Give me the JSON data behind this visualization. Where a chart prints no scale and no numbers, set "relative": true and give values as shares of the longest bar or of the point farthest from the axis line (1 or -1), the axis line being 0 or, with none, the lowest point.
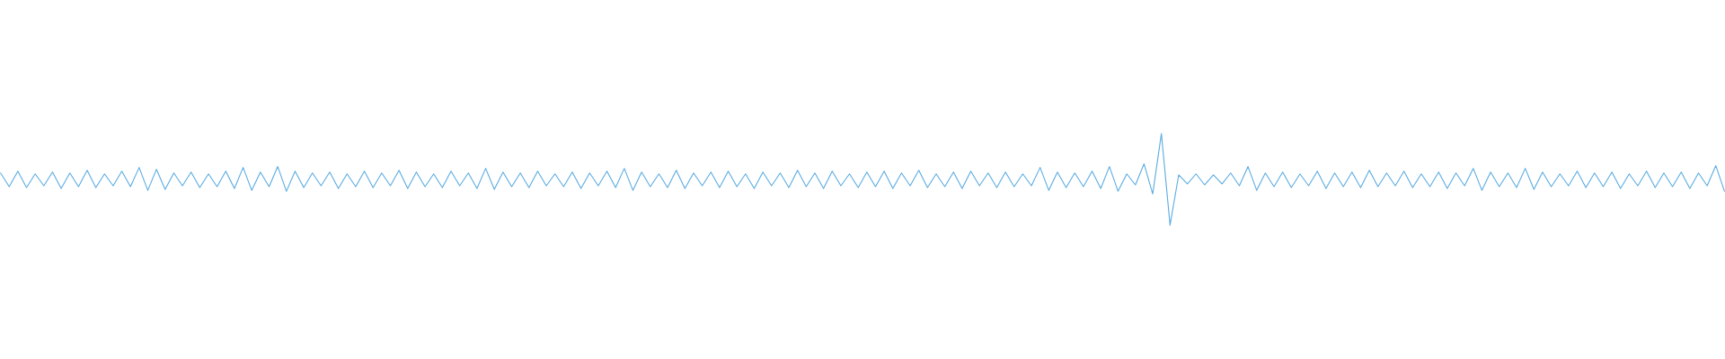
{
  "chart_data": {
    "type": "line",
    "relative": true,
    "categories": [
      null,
      null,
      null,
      null,
      null,
      null,
      null,
      null,
      null,
      null,
      null,
      null,
      null,
      null,
      null,
      null,
      null,
      null,
      null,
      null,
      null,
      null,
      null,
      null,
      null,
      null,
      null,
      null,
      null,
      null,
      null,
      null,
      null,
      null,
      null,
      null,
      null,
      null,
      null,
      null,
      null,
      null,
      null,
      null,
      null,
      null,
      null,
      null,
      null,
      null,
      null,
      null,
      null,
      null,
      null,
      null,
      null,
      null,
      null,
      null,
      null,
      null,
      null,
      null,
      null,
      null,
      null,
      null,
      null,
      null,
      null,
      null,
      null,
      null,
      null,
      null,
      null,
      null,
      null,
      null,
      null,
      null,
      null,
      null,
      null,
      null,
      null,
      null,
      null,
      null,
      null,
      null,
      null,
      null,
      null,
      null,
      null,
      null,
      null,
      null,
      null,
      null,
      null,
      null,
      null,
      null,
      null,
      null,
      null,
      null,
      null,
      null,
      null,
      null,
      null,
      null,
      null,
      null,
      null,
      null,
      null,
      null,
      null,
      null,
      null,
      null,
      null,
      null,
      null,
      null,
      null,
      null,
      null,
      null,
      null,
      null,
      null,
      null,
      null,
      null,
      null,
      null,
      null,
      null,
      null,
      null,
      null,
      null,
      null,
      null,
      null,
      null,
      null,
      null,
      null,
      null,
      null,
      null,
      null,
      null,
      null,
      null,
      null,
      null,
      null,
      null,
      null,
      null,
      null,
      null,
      null,
      null,
      null,
      null,
      null,
      null,
      null,
      null,
      null,
      null,
      null,
      null,
      null,
      null,
      null,
      null,
      null,
      null,
      null,
      null,
      null,
      null,
      null,
      null,
      null,
      null,
      null,
      null,
      null,
      null
    ],
    "series": [
      {
        "color": "#5dade2",
        "values": [
          0.57,
          0.42,
          0.59,
          0.41,
          0.56,
          0.43,
          0.58,
          0.4,
          0.57,
          0.42,
          0.6,
          0.41,
          0.56,
          0.43,
          0.59,
          0.42,
          0.63,
          0.38,
          0.61,
          0.39,
          0.57,
          0.43,
          0.58,
          0.41,
          0.56,
          0.42,
          0.59,
          0.4,
          0.63,
          0.38,
          0.58,
          0.42,
          0.64,
          0.37,
          0.59,
          0.41,
          0.57,
          0.43,
          0.58,
          0.4,
          0.56,
          0.42,
          0.59,
          0.41,
          0.57,
          0.43,
          0.6,
          0.4,
          0.58,
          0.42,
          0.56,
          0.41,
          0.59,
          0.43,
          0.57,
          0.4,
          0.62,
          0.39,
          0.58,
          0.42,
          0.57,
          0.41,
          0.59,
          0.43,
          0.56,
          0.42,
          0.58,
          0.4,
          0.57,
          0.43,
          0.59,
          0.41,
          0.62,
          0.38,
          0.58,
          0.42,
          0.56,
          0.41,
          0.6,
          0.4,
          0.57,
          0.43,
          0.58,
          0.41,
          0.59,
          0.42,
          0.56,
          0.4,
          0.58,
          0.43,
          0.57,
          0.41,
          0.6,
          0.42,
          0.57,
          0.4,
          0.59,
          0.43,
          0.56,
          0.41,
          0.58,
          0.42,
          0.59,
          0.4,
          0.57,
          0.43,
          0.6,
          0.41,
          0.56,
          0.42,
          0.58,
          0.4,
          0.59,
          0.43,
          0.57,
          0.41,
          0.58,
          0.42,
          0.56,
          0.43,
          0.63,
          0.38,
          0.58,
          0.41,
          0.57,
          0.42,
          0.59,
          0.4,
          0.64,
          0.37,
          0.56,
          0.44,
          0.67,
          0.34,
          1.0,
          0.0,
          0.55,
          0.45,
          0.56,
          0.44,
          0.55,
          0.45,
          0.57,
          0.43,
          0.64,
          0.38,
          0.57,
          0.42,
          0.58,
          0.41,
          0.56,
          0.43,
          0.59,
          0.4,
          0.57,
          0.42,
          0.58,
          0.41,
          0.6,
          0.42,
          0.57,
          0.43,
          0.59,
          0.41,
          0.56,
          0.42,
          0.58,
          0.4,
          0.57,
          0.43,
          0.62,
          0.38,
          0.58,
          0.42,
          0.57,
          0.41,
          0.62,
          0.39,
          0.58,
          0.42,
          0.56,
          0.43,
          0.59,
          0.41,
          0.57,
          0.42,
          0.58,
          0.4,
          0.56,
          0.43,
          0.59,
          0.41,
          0.57,
          0.42,
          0.58,
          0.4,
          0.57,
          0.43,
          0.65,
          0.37
        ]
      }
    ]
  }
}
